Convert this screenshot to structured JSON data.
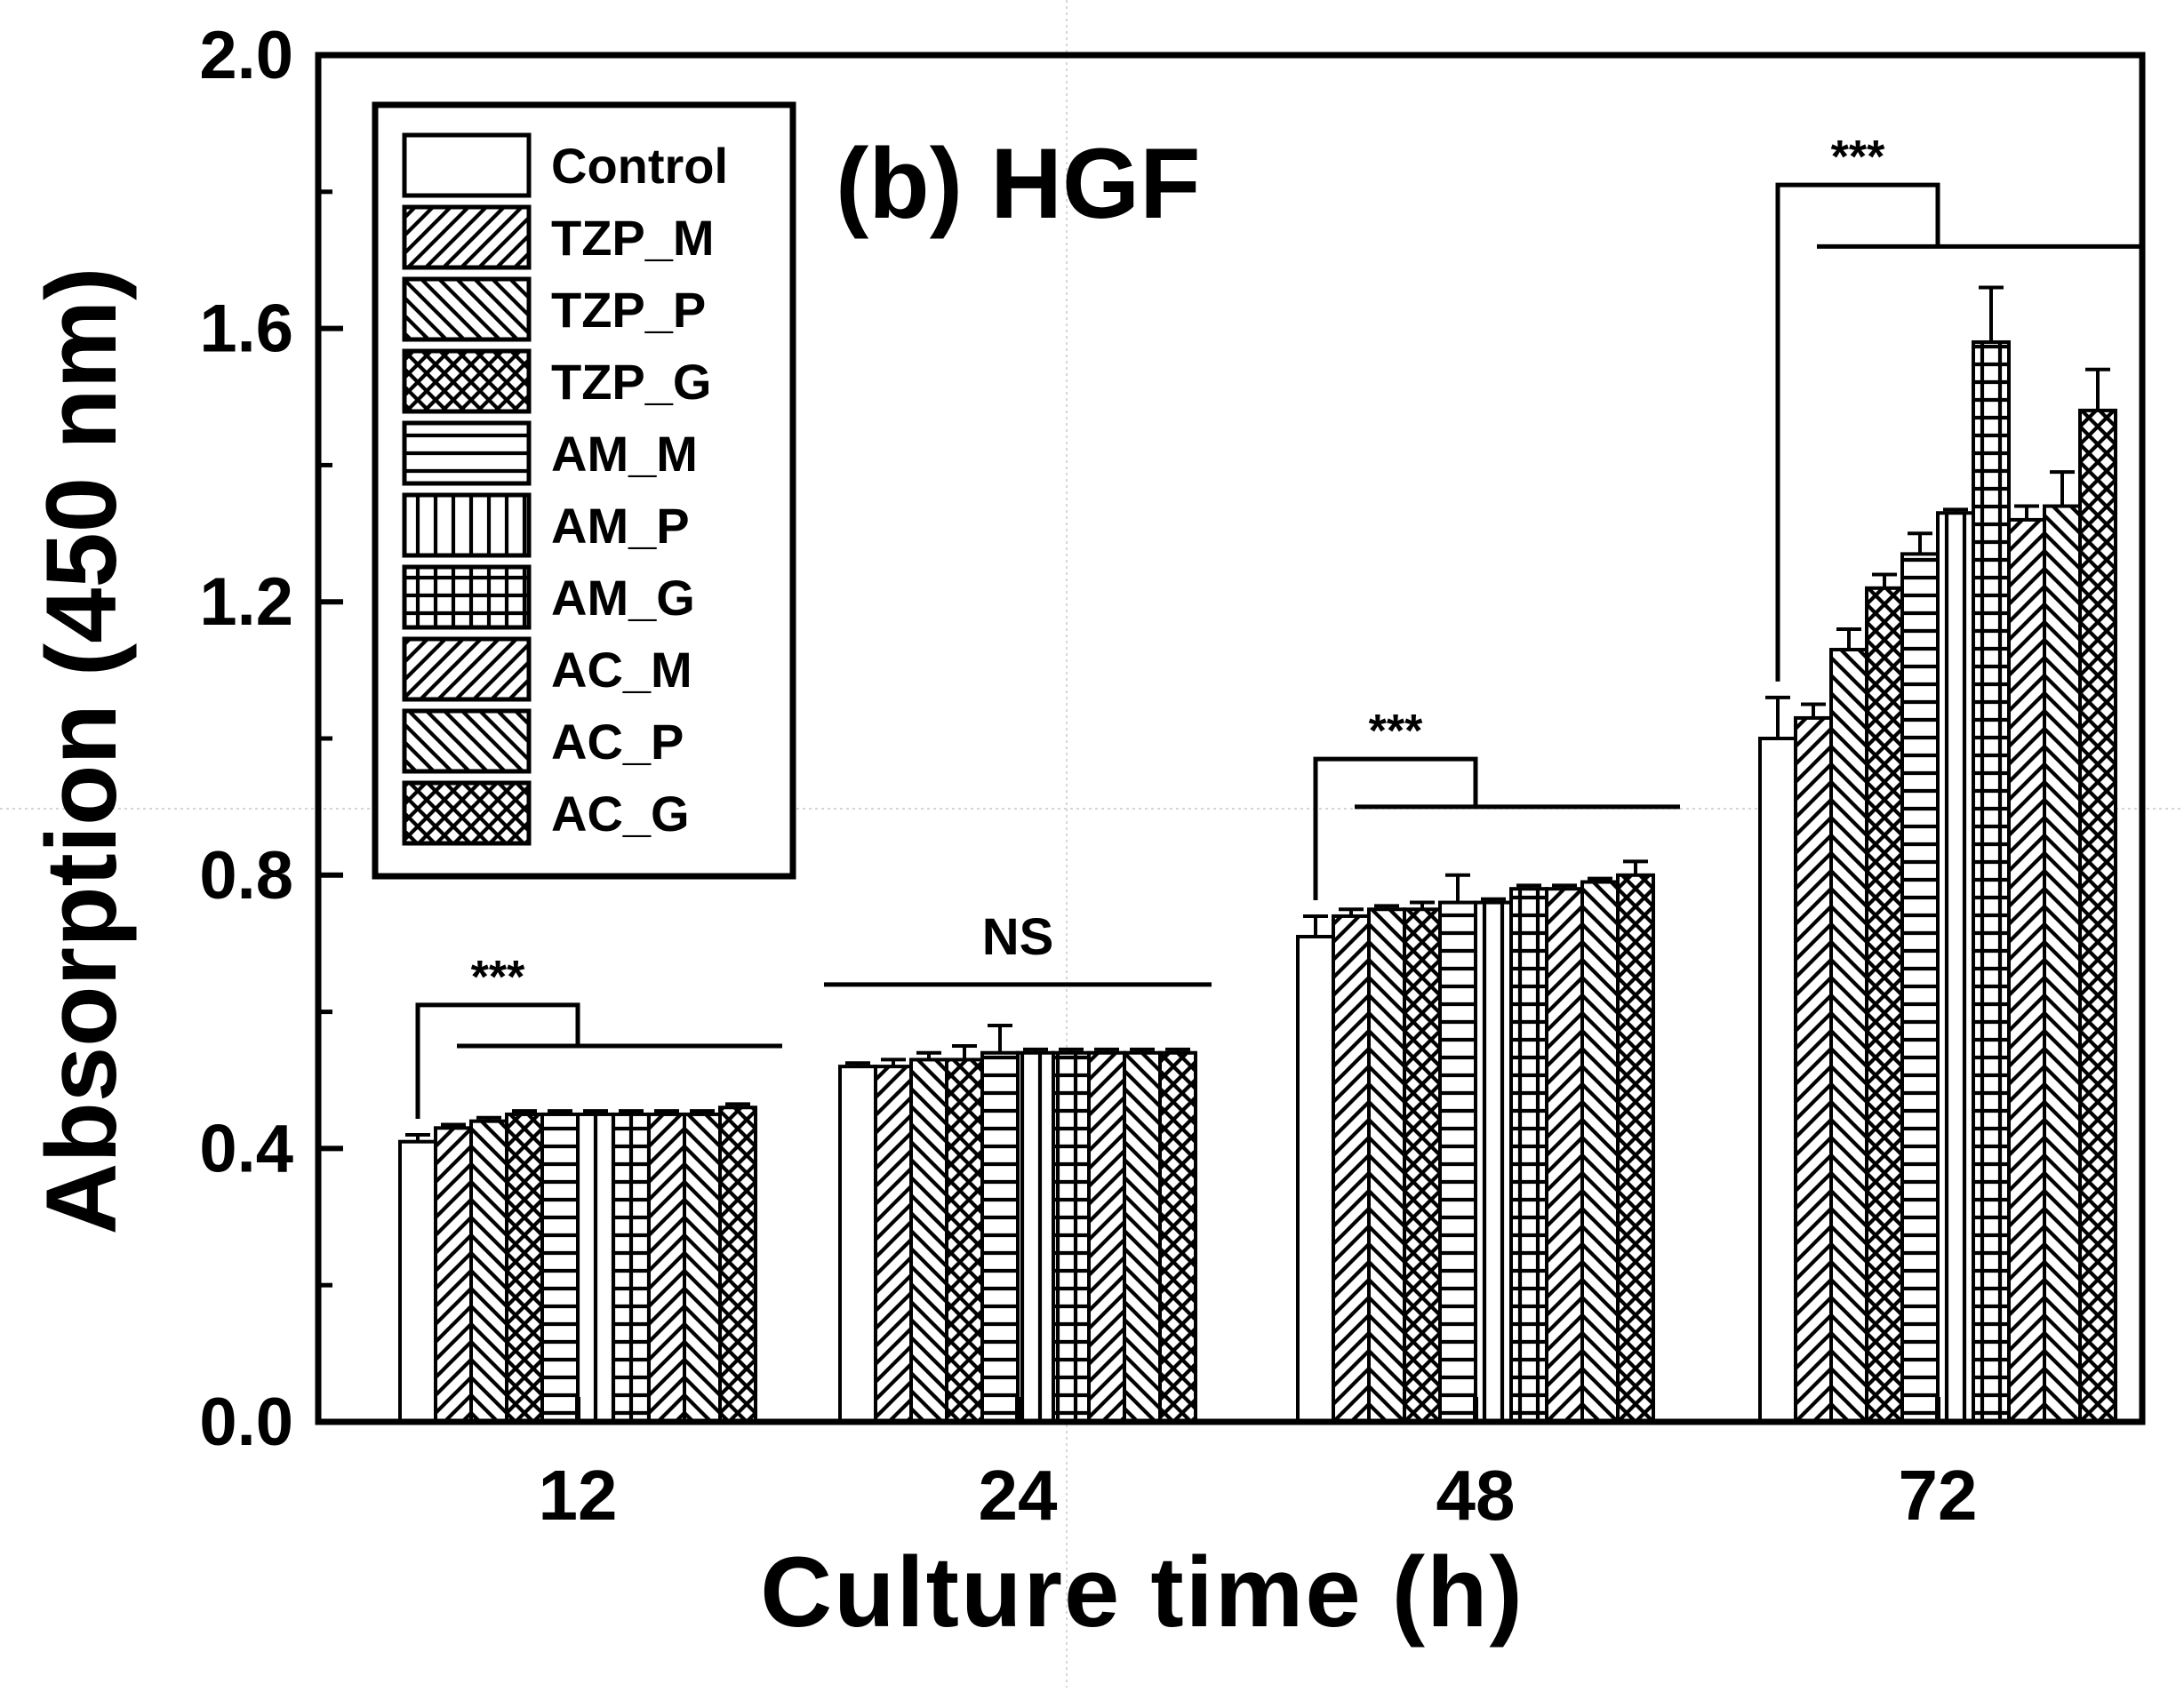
{
  "chart_data": {
    "type": "bar",
    "title": "(b) HGF",
    "xlabel": "Culture time (h)",
    "ylabel": "Absorption (450 nm)",
    "ylim": [
      0,
      2.0
    ],
    "yticks": [
      "0.0",
      "0.4",
      "0.8",
      "1.2",
      "1.6",
      "2.0"
    ],
    "categories": [
      "12",
      "24",
      "48",
      "72"
    ],
    "legend_position": "top-left",
    "series": [
      {
        "name": "Control",
        "pattern": "none",
        "values": [
          0.41,
          0.52,
          0.71,
          1.0
        ],
        "errors": [
          0.01,
          0.005,
          0.03,
          0.06
        ]
      },
      {
        "name": "TZP_M",
        "pattern": "fdiag",
        "values": [
          0.43,
          0.52,
          0.74,
          1.03
        ],
        "errors": [
          0.005,
          0.01,
          0.01,
          0.02
        ]
      },
      {
        "name": "TZP_P",
        "pattern": "bdiag",
        "values": [
          0.44,
          0.53,
          0.75,
          1.13
        ],
        "errors": [
          0.005,
          0.01,
          0.005,
          0.03
        ]
      },
      {
        "name": "TZP_G",
        "pattern": "cross",
        "values": [
          0.45,
          0.53,
          0.75,
          1.22
        ],
        "errors": [
          0.005,
          0.02,
          0.01,
          0.02
        ]
      },
      {
        "name": "AM_M",
        "pattern": "horiz",
        "values": [
          0.45,
          0.54,
          0.76,
          1.27
        ],
        "errors": [
          0.005,
          0.04,
          0.04,
          0.03
        ]
      },
      {
        "name": "AM_P",
        "pattern": "vert",
        "values": [
          0.45,
          0.54,
          0.76,
          1.33
        ],
        "errors": [
          0.005,
          0.005,
          0.005,
          0.005
        ]
      },
      {
        "name": "AM_G",
        "pattern": "grid",
        "values": [
          0.45,
          0.54,
          0.78,
          1.58
        ],
        "errors": [
          0.005,
          0.005,
          0.005,
          0.08
        ]
      },
      {
        "name": "AC_M",
        "pattern": "fdiag",
        "values": [
          0.45,
          0.54,
          0.78,
          1.32
        ],
        "errors": [
          0.005,
          0.005,
          0.005,
          0.02
        ]
      },
      {
        "name": "AC_P",
        "pattern": "bdiag",
        "values": [
          0.45,
          0.54,
          0.79,
          1.34
        ],
        "errors": [
          0.005,
          0.005,
          0.005,
          0.05
        ]
      },
      {
        "name": "AC_G",
        "pattern": "cross",
        "values": [
          0.46,
          0.54,
          0.8,
          1.48
        ],
        "errors": [
          0.005,
          0.005,
          0.02,
          0.06
        ]
      }
    ],
    "annotations": [
      {
        "category": "12",
        "text": "***",
        "bracket_y": 0.61,
        "line_y": 0.55
      },
      {
        "category": "24",
        "text": "NS",
        "line_y": 0.64
      },
      {
        "category": "48",
        "text": "***",
        "bracket_y": 0.97,
        "line_y": 0.9
      },
      {
        "category": "72",
        "text": "***",
        "bracket_y": 1.81,
        "line_y": 1.72
      }
    ]
  }
}
